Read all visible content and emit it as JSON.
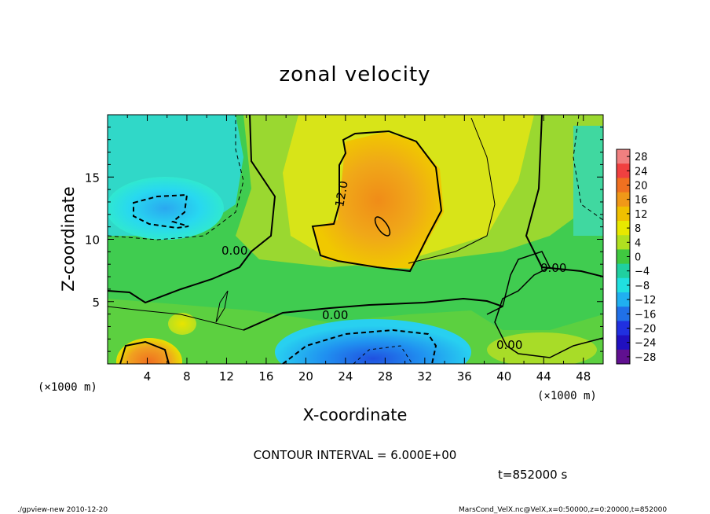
{
  "chart_data": {
    "type": "heatmap",
    "title": "zonal velocity",
    "xlabel": "X-coordinate",
    "ylabel": "Z-coordinate",
    "x_unit": "(×1000 m)",
    "y_unit": "(×1000 m)",
    "xlim": [
      0,
      50
    ],
    "ylim": [
      0,
      20
    ],
    "x_ticks": [
      "4",
      "8",
      "12",
      "16",
      "20",
      "24",
      "28",
      "32",
      "36",
      "40",
      "44",
      "48"
    ],
    "y_ticks": [
      "5",
      "10",
      "15"
    ],
    "colorbar": {
      "levels": [
        "28",
        "24",
        "20",
        "16",
        "12",
        "8",
        "4",
        "0",
        "−4",
        "−8",
        "−12",
        "−16",
        "−20",
        "−24",
        "−28"
      ],
      "colors": [
        "#f08080",
        "#f04040",
        "#f07020",
        "#f09818",
        "#f0c000",
        "#e8e800",
        "#b0e020",
        "#40c840",
        "#20d0a0",
        "#20e0e0",
        "#20b0f0",
        "#2070e8",
        "#2030e0",
        "#2010c0",
        "#601090"
      ]
    },
    "contour_labels": [
      "12.0",
      "0.00",
      "0.00",
      "0.00",
      "0.00"
    ],
    "contour_interval": "CONTOUR INTERVAL = 6.000E+00",
    "time": "t=852000 s"
  },
  "footer": {
    "left": "./gpview-new 2010-12-20",
    "right": "MarsCond_VelX.nc@VelX,x=0:50000,z=0:20000,t=852000"
  }
}
